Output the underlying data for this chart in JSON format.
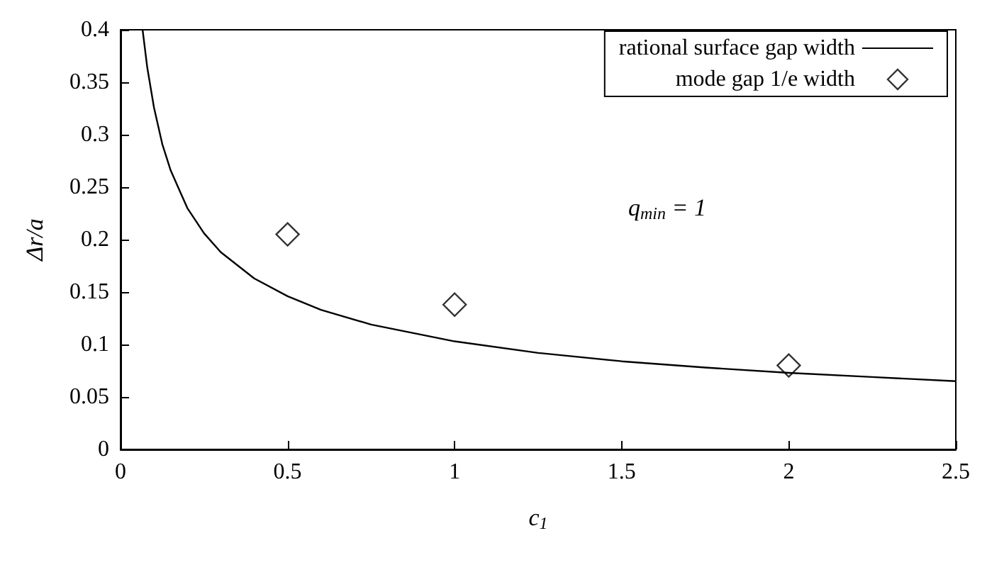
{
  "chart_data": {
    "type": "line",
    "xlabel": "c$_{1}$",
    "ylabel": "Δr/a",
    "xlim": [
      0,
      2.5
    ],
    "ylim": [
      0,
      0.4
    ],
    "xticks": [
      0,
      0.5,
      1,
      1.5,
      2,
      2.5
    ],
    "yticks": [
      0,
      0.05,
      0.1,
      0.15,
      0.2,
      0.25,
      0.3,
      0.35,
      0.4
    ],
    "grid": false,
    "legend": "top right",
    "marker": "diamond",
    "annotations": [
      "q$_{min}$ = 1"
    ],
    "series": [
      {
        "name": "rational surface gap width",
        "color": "#000000",
        "marker": "none",
        "line_style": "solid",
        "x": [
          0.066,
          0.08,
          0.1,
          0.125,
          0.15,
          0.2,
          0.25,
          0.3,
          0.4,
          0.5,
          0.6,
          0.75,
          1,
          1.25,
          1.5,
          1.75,
          2,
          2.25,
          2.5
        ],
        "values": [
          0.4,
          0.364,
          0.326,
          0.291,
          0.266,
          0.23,
          0.206,
          0.188,
          0.163,
          0.146,
          0.133,
          0.119,
          0.103,
          0.092,
          0.084,
          0.078,
          0.073,
          0.069,
          0.065
        ]
      },
      {
        "name": "mode gap 1/e width",
        "type": "scatter",
        "color": "#000000",
        "x": [
          0.5,
          1,
          2
        ],
        "values": [
          0.205,
          0.138,
          0.08
        ]
      }
    ]
  }
}
